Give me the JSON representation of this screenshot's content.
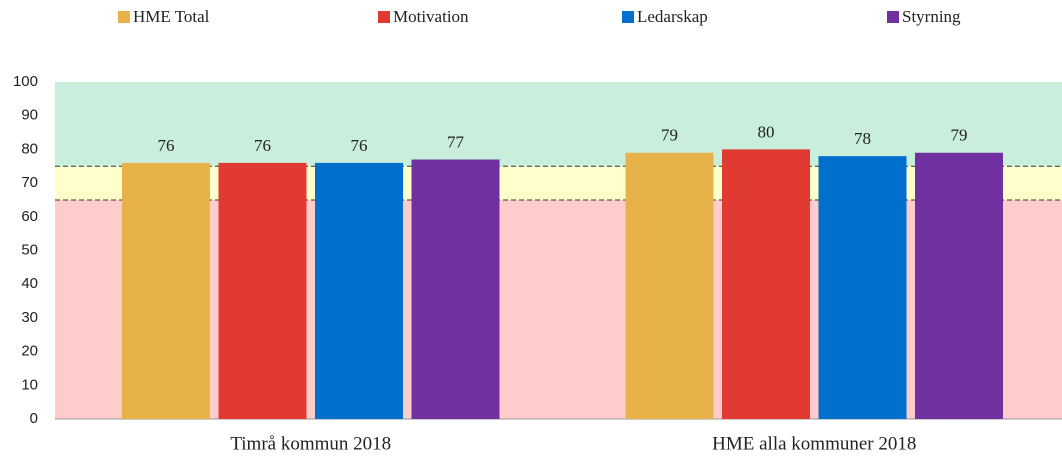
{
  "chart_data": {
    "type": "bar",
    "categories": [
      "Timrå kommun 2018",
      "HME alla kommuner 2018"
    ],
    "series": [
      {
        "name": "HME Total",
        "color": "#e8b24a",
        "values": [
          76,
          79
        ]
      },
      {
        "name": "Motivation",
        "color": "#e03a33",
        "values": [
          76,
          80
        ]
      },
      {
        "name": "Ledarskap",
        "color": "#0070cc",
        "values": [
          76,
          78
        ]
      },
      {
        "name": "Styrning",
        "color": "#7030a0",
        "values": [
          77,
          79
        ]
      }
    ],
    "ylim": [
      0,
      100
    ],
    "yticks": [
      0,
      10,
      20,
      30,
      40,
      50,
      60,
      70,
      80,
      90,
      100
    ],
    "bands": [
      {
        "from": 0,
        "to": 65,
        "color": "#ffcccc"
      },
      {
        "from": 65,
        "to": 75,
        "color": "#ffffcc"
      },
      {
        "from": 75,
        "to": 100,
        "color": "#c9eedb"
      }
    ],
    "thresholds": [
      65,
      75
    ],
    "legend": "top"
  }
}
